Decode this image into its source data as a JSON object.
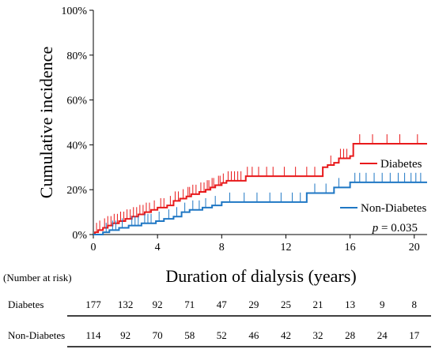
{
  "chart_data": {
    "type": "line",
    "subtype": "kaplan-meier-cumulative-incidence",
    "xlabel": "Duration of dialysis (years)",
    "ylabel": "Cumulative incidence",
    "xlim": [
      0,
      20.8
    ],
    "ylim": [
      0,
      100
    ],
    "x_ticks": [
      0,
      4,
      8,
      12,
      16,
      20
    ],
    "y_ticks": [
      0,
      20,
      40,
      60,
      80,
      100
    ],
    "y_tick_labels": [
      "0%",
      "20%",
      "40%",
      "60%",
      "80%",
      "100%"
    ],
    "annotation": {
      "italic": "p",
      "text": " = 0.035"
    },
    "series": [
      {
        "name": "Diabetes",
        "color": "#e8191b",
        "steps": [
          [
            0,
            0
          ],
          [
            0.1,
            1
          ],
          [
            0.3,
            2
          ],
          [
            0.6,
            3
          ],
          [
            0.9,
            4
          ],
          [
            1.2,
            5
          ],
          [
            1.6,
            6
          ],
          [
            2.0,
            7
          ],
          [
            2.4,
            8
          ],
          [
            2.8,
            9
          ],
          [
            3.2,
            10
          ],
          [
            3.6,
            11
          ],
          [
            4.0,
            12
          ],
          [
            4.6,
            13
          ],
          [
            5.0,
            15
          ],
          [
            5.4,
            16
          ],
          [
            5.8,
            17
          ],
          [
            6.1,
            18
          ],
          [
            6.6,
            19
          ],
          [
            7.0,
            20
          ],
          [
            7.3,
            21
          ],
          [
            7.6,
            22
          ],
          [
            8.0,
            23
          ],
          [
            8.3,
            24
          ],
          [
            9.5,
            26
          ],
          [
            14.3,
            30
          ],
          [
            14.6,
            31
          ],
          [
            15.0,
            32
          ],
          [
            15.3,
            34
          ],
          [
            16.0,
            35
          ],
          [
            16.2,
            40.5
          ],
          [
            20.8,
            40.5
          ]
        ],
        "censor_x": [
          0.2,
          0.4,
          0.7,
          0.9,
          1.1,
          1.3,
          1.5,
          1.7,
          1.9,
          2.1,
          2.3,
          2.5,
          2.7,
          2.9,
          3.1,
          3.3,
          3.5,
          3.8,
          4.2,
          4.4,
          4.8,
          5.1,
          5.3,
          5.6,
          5.9,
          6.0,
          6.2,
          6.4,
          6.7,
          6.9,
          7.1,
          7.2,
          7.4,
          7.5,
          7.8,
          7.9,
          8.1,
          8.4,
          8.6,
          8.8,
          9.0,
          9.2,
          9.6,
          9.9,
          10.3,
          10.8,
          11.2,
          11.9,
          12.6,
          13.3,
          13.8,
          14.8,
          15.4,
          15.6,
          15.8,
          16.6,
          17.4,
          18.3,
          19.1,
          20.2
        ]
      },
      {
        "name": "Non-Diabetes",
        "color": "#1f77c4",
        "steps": [
          [
            0,
            0
          ],
          [
            0.6,
            1
          ],
          [
            1.0,
            2
          ],
          [
            1.6,
            3
          ],
          [
            2.2,
            4
          ],
          [
            3.0,
            5
          ],
          [
            3.9,
            6
          ],
          [
            4.4,
            7
          ],
          [
            5.0,
            8
          ],
          [
            5.5,
            10
          ],
          [
            6.0,
            11
          ],
          [
            6.8,
            12
          ],
          [
            7.4,
            13
          ],
          [
            8.0,
            14.5
          ],
          [
            13.3,
            18.5
          ],
          [
            15.0,
            21
          ],
          [
            16.0,
            23.3
          ],
          [
            20.8,
            23.3
          ]
        ],
        "censor_x": [
          0.8,
          1.2,
          1.4,
          1.8,
          2.4,
          2.6,
          2.8,
          3.2,
          3.4,
          3.6,
          4.1,
          4.7,
          5.2,
          5.7,
          6.2,
          6.6,
          7.0,
          7.6,
          8.5,
          9.4,
          10.2,
          11.0,
          11.7,
          12.4,
          12.9,
          13.8,
          14.5,
          15.3,
          16.3,
          16.6,
          17.0,
          17.5,
          18.0,
          18.5,
          19.0,
          19.4,
          19.8,
          20.1,
          20.4
        ]
      }
    ],
    "risk_table": {
      "header": "(Number at risk)",
      "rows": [
        {
          "label": "Diabetes",
          "values": [
            "177",
            "132",
            "92",
            "71",
            "47",
            "29",
            "25",
            "21",
            "13",
            "9",
            "8"
          ]
        },
        {
          "label": "Non-Diabetes",
          "values": [
            "114",
            "92",
            "70",
            "58",
            "52",
            "46",
            "42",
            "32",
            "28",
            "24",
            "17"
          ]
        }
      ]
    }
  }
}
